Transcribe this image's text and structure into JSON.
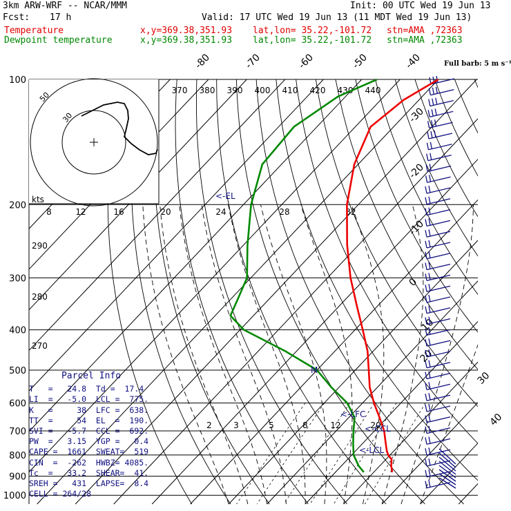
{
  "header": {
    "model": "3km ARW-WRF -- NCAR/MMM",
    "init": "Init: 00 UTC Wed 19 Jun 13",
    "fcst_label": "Fcst:",
    "fcst": "17 h",
    "valid": "Valid: 17 UTC Wed 19 Jun 13 (11 MDT Wed 19 Jun 13)",
    "temp_label": "Temperature",
    "dew_label": "Dewpoint temperature",
    "xy": "x,y=369.38,351.93",
    "latlon": "lat,lon= 35.22,-101.72",
    "stn": "stn=AMA ,72363"
  },
  "colors": {
    "temperature": "#ee0000",
    "dewpoint": "#008800",
    "index_text": "#101080",
    "grid": "#000000"
  },
  "chart_data": {
    "type": "line",
    "title": "",
    "y_axis": "pressure (hPa), log scale",
    "pressure_ticks": [
      100,
      200,
      300,
      400,
      500,
      600,
      700,
      800,
      900,
      1000
    ],
    "pressure_tick_labels": [
      "100",
      "200",
      "300",
      "400",
      "500",
      "600",
      "700",
      "800",
      "900",
      "1000"
    ],
    "isotherm_labels": [
      "-80",
      "-70",
      "-60",
      "-50",
      "-40",
      "-30",
      "-20",
      "-10",
      "0",
      "10",
      "20",
      "30",
      "40"
    ],
    "theta_labels_top": [
      "370",
      "380",
      "390",
      "400",
      "410",
      "420",
      "430",
      "440"
    ],
    "theta_labels_left": [
      "290",
      "280",
      "270"
    ],
    "mixing_ratio_labels": [
      "2",
      "3",
      "5",
      "8",
      "12",
      "20"
    ],
    "hodograph": {
      "unit_label": "kts",
      "speed_ticks": [
        "8",
        "12",
        "16",
        "20",
        "24",
        "28",
        "32"
      ],
      "ring_labels": [
        "50",
        "30"
      ]
    },
    "wind_label": "Full barb: 5 m s⁻¹",
    "series": [
      {
        "name": "Temperature",
        "color": "#ee0000",
        "points": [
          {
            "p": 100,
            "t": -60
          },
          {
            "p": 112,
            "t": -64
          },
          {
            "p": 130,
            "t": -66
          },
          {
            "p": 160,
            "t": -61
          },
          {
            "p": 200,
            "t": -53
          },
          {
            "p": 250,
            "t": -43
          },
          {
            "p": 300,
            "t": -34
          },
          {
            "p": 350,
            "t": -25.5
          },
          {
            "p": 400,
            "t": -18
          },
          {
            "p": 450,
            "t": -11.5
          },
          {
            "p": 500,
            "t": -6.5
          },
          {
            "p": 550,
            "t": -2
          },
          {
            "p": 600,
            "t": 3
          },
          {
            "p": 650,
            "t": 8
          },
          {
            "p": 700,
            "t": 12.5
          },
          {
            "p": 750,
            "t": 16
          },
          {
            "p": 780,
            "t": 18
          },
          {
            "p": 800,
            "t": 19.5
          },
          {
            "p": 820,
            "t": 21.5
          },
          {
            "p": 850,
            "t": 23
          },
          {
            "p": 880,
            "t": 24.8
          }
        ]
      },
      {
        "name": "Dewpoint temperature",
        "color": "#008800",
        "points": [
          {
            "p": 100,
            "t": -76
          },
          {
            "p": 110,
            "t": -82
          },
          {
            "p": 130,
            "t": -86
          },
          {
            "p": 160,
            "t": -85
          },
          {
            "p": 200,
            "t": -78
          },
          {
            "p": 250,
            "t": -69
          },
          {
            "p": 300,
            "t": -61
          },
          {
            "p": 340,
            "t": -58
          },
          {
            "p": 370,
            "t": -56
          },
          {
            "p": 400,
            "t": -49
          },
          {
            "p": 450,
            "t": -33
          },
          {
            "p": 500,
            "t": -20
          },
          {
            "p": 550,
            "t": -12
          },
          {
            "p": 600,
            "t": -4
          },
          {
            "p": 650,
            "t": 1.5
          },
          {
            "p": 700,
            "t": 4.5
          },
          {
            "p": 750,
            "t": 7.5
          },
          {
            "p": 800,
            "t": 10.5
          },
          {
            "p": 850,
            "t": 14.5
          },
          {
            "p": 880,
            "t": 17.4
          }
        ]
      }
    ],
    "annotations": [
      "<-EL",
      "<-LFC",
      "<-CCL",
      "<-LCL",
      "M"
    ]
  },
  "parcel": {
    "title": "Parcel Info",
    "rows": [
      "T   =   24.8  Td =  17.4",
      "LI  =   -5.0  LCL =  775.",
      "K   =     38  LFC =  638.",
      "TT  =     54  EL  =  190.",
      "SVI =   -5.7  CCL =  692.",
      "PW  =   3.15  YGP =   0.4",
      "CAPE =  1661  SWEAT=  519",
      "CIN  =  -262  HWBZ= 4085.",
      "Tc  =   33.2  SHEAR=  41.",
      "SREH =   431  LAPSE=  8.4",
      "CELL = 264/28"
    ]
  }
}
